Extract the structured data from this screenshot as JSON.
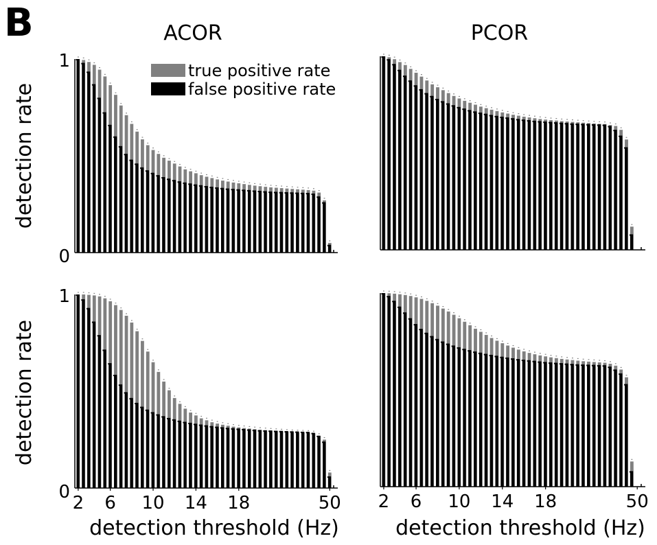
{
  "figure": {
    "panel_letter": "B",
    "ylabel": "detection rate",
    "xlabel": "detection threshold (Hz)"
  },
  "colors": {
    "true_positive": "#808080",
    "false_positive": "#000000",
    "axis": "#000000"
  },
  "chart_data": [
    {
      "id": "acor-top",
      "type": "bar",
      "title": "ACOR",
      "legend": {
        "position": "top-right",
        "entries": [
          "true positive rate",
          "false positive rate"
        ]
      },
      "ylim": [
        0,
        1
      ],
      "yticks": [
        "1",
        "0"
      ],
      "xticks": [],
      "series": [
        {
          "name": "true positive rate",
          "values": [
            1.0,
            0.995,
            0.985,
            0.97,
            0.945,
            0.91,
            0.865,
            0.815,
            0.76,
            0.71,
            0.665,
            0.625,
            0.585,
            0.555,
            0.53,
            0.51,
            0.49,
            0.475,
            0.46,
            0.445,
            0.43,
            0.42,
            0.41,
            0.4,
            0.392,
            0.385,
            0.378,
            0.372,
            0.367,
            0.362,
            0.358,
            0.354,
            0.35,
            0.346,
            0.343,
            0.34,
            0.337,
            0.335,
            0.333,
            0.331,
            0.329,
            0.327,
            0.325,
            0.323,
            0.32,
            0.31,
            0.27,
            0.05,
            0.0
          ]
        },
        {
          "name": "false positive rate",
          "values": [
            1.0,
            0.98,
            0.935,
            0.87,
            0.8,
            0.725,
            0.66,
            0.6,
            0.55,
            0.51,
            0.48,
            0.46,
            0.44,
            0.425,
            0.412,
            0.4,
            0.39,
            0.382,
            0.375,
            0.368,
            0.362,
            0.357,
            0.352,
            0.348,
            0.344,
            0.34,
            0.337,
            0.334,
            0.331,
            0.329,
            0.327,
            0.325,
            0.323,
            0.321,
            0.319,
            0.317,
            0.315,
            0.314,
            0.313,
            0.312,
            0.311,
            0.31,
            0.309,
            0.308,
            0.305,
            0.29,
            0.26,
            0.04,
            0.0
          ]
        }
      ]
    },
    {
      "id": "pcor-top",
      "type": "bar",
      "title": "PCOR",
      "ylim": [
        0,
        1
      ],
      "yticks": [],
      "xticks": [],
      "series": [
        {
          "name": "true positive rate",
          "values": [
            1.0,
            0.995,
            0.985,
            0.97,
            0.955,
            0.935,
            0.915,
            0.895,
            0.875,
            0.855,
            0.84,
            0.825,
            0.81,
            0.795,
            0.782,
            0.77,
            0.76,
            0.75,
            0.74,
            0.732,
            0.724,
            0.717,
            0.71,
            0.704,
            0.698,
            0.693,
            0.688,
            0.684,
            0.68,
            0.676,
            0.673,
            0.67,
            0.668,
            0.665,
            0.663,
            0.661,
            0.659,
            0.657,
            0.655,
            0.653,
            0.651,
            0.65,
            0.645,
            0.64,
            0.62,
            0.57,
            0.12,
            0.0,
            0.0
          ]
        },
        {
          "name": "false positive rate",
          "values": [
            1.0,
            0.985,
            0.96,
            0.93,
            0.9,
            0.875,
            0.85,
            0.83,
            0.81,
            0.795,
            0.78,
            0.768,
            0.757,
            0.747,
            0.738,
            0.73,
            0.722,
            0.715,
            0.709,
            0.703,
            0.697,
            0.692,
            0.688,
            0.684,
            0.68,
            0.676,
            0.673,
            0.67,
            0.667,
            0.665,
            0.663,
            0.661,
            0.659,
            0.657,
            0.655,
            0.653,
            0.652,
            0.651,
            0.65,
            0.649,
            0.648,
            0.647,
            0.64,
            0.62,
            0.59,
            0.53,
            0.08,
            0.0,
            0.0
          ]
        }
      ]
    },
    {
      "id": "acor-bottom",
      "type": "bar",
      "ylim": [
        0,
        1
      ],
      "yticks": [
        "1",
        "0"
      ],
      "xticks": [
        "2",
        "6",
        "10",
        "14",
        "18",
        "50"
      ],
      "series": [
        {
          "name": "true positive rate",
          "values": [
            1.0,
            1.0,
            0.998,
            0.995,
            0.99,
            0.98,
            0.965,
            0.945,
            0.92,
            0.89,
            0.855,
            0.81,
            0.76,
            0.705,
            0.65,
            0.6,
            0.55,
            0.505,
            0.465,
            0.435,
            0.41,
            0.39,
            0.375,
            0.36,
            0.35,
            0.34,
            0.333,
            0.327,
            0.322,
            0.317,
            0.313,
            0.31,
            0.307,
            0.304,
            0.301,
            0.299,
            0.297,
            0.295,
            0.293,
            0.291,
            0.289,
            0.288,
            0.287,
            0.286,
            0.283,
            0.27,
            0.25,
            0.08,
            0.0
          ]
        },
        {
          "name": "false positive rate",
          "values": [
            1.0,
            0.975,
            0.93,
            0.86,
            0.79,
            0.715,
            0.645,
            0.585,
            0.535,
            0.495,
            0.465,
            0.44,
            0.42,
            0.405,
            0.392,
            0.381,
            0.371,
            0.362,
            0.355,
            0.348,
            0.342,
            0.337,
            0.332,
            0.328,
            0.324,
            0.32,
            0.317,
            0.314,
            0.311,
            0.309,
            0.307,
            0.305,
            0.303,
            0.301,
            0.299,
            0.298,
            0.297,
            0.296,
            0.295,
            0.294,
            0.293,
            0.292,
            0.291,
            0.29,
            0.285,
            0.27,
            0.24,
            0.06,
            0.0
          ]
        }
      ]
    },
    {
      "id": "pcor-bottom",
      "type": "bar",
      "ylim": [
        0,
        1
      ],
      "yticks": [],
      "xticks": [
        "2",
        "6",
        "10",
        "14",
        "18",
        "50"
      ],
      "series": [
        {
          "name": "true positive rate",
          "values": [
            1.0,
            0.999,
            0.997,
            0.994,
            0.99,
            0.985,
            0.978,
            0.97,
            0.96,
            0.948,
            0.935,
            0.92,
            0.905,
            0.888,
            0.87,
            0.852,
            0.834,
            0.816,
            0.8,
            0.784,
            0.768,
            0.754,
            0.741,
            0.729,
            0.718,
            0.708,
            0.699,
            0.691,
            0.684,
            0.678,
            0.673,
            0.668,
            0.664,
            0.66,
            0.657,
            0.654,
            0.651,
            0.648,
            0.646,
            0.644,
            0.642,
            0.64,
            0.635,
            0.625,
            0.605,
            0.565,
            0.13,
            0.0,
            0.0
          ]
        },
        {
          "name": "false positive rate",
          "values": [
            1.0,
            0.985,
            0.96,
            0.93,
            0.9,
            0.87,
            0.84,
            0.815,
            0.795,
            0.778,
            0.763,
            0.75,
            0.739,
            0.729,
            0.72,
            0.712,
            0.705,
            0.698,
            0.692,
            0.686,
            0.681,
            0.676,
            0.671,
            0.667,
            0.663,
            0.659,
            0.656,
            0.653,
            0.65,
            0.647,
            0.644,
            0.642,
            0.64,
            0.638,
            0.636,
            0.634,
            0.632,
            0.631,
            0.63,
            0.629,
            0.628,
            0.627,
            0.62,
            0.605,
            0.585,
            0.53,
            0.08,
            0.0,
            0.0
          ]
        }
      ]
    }
  ]
}
